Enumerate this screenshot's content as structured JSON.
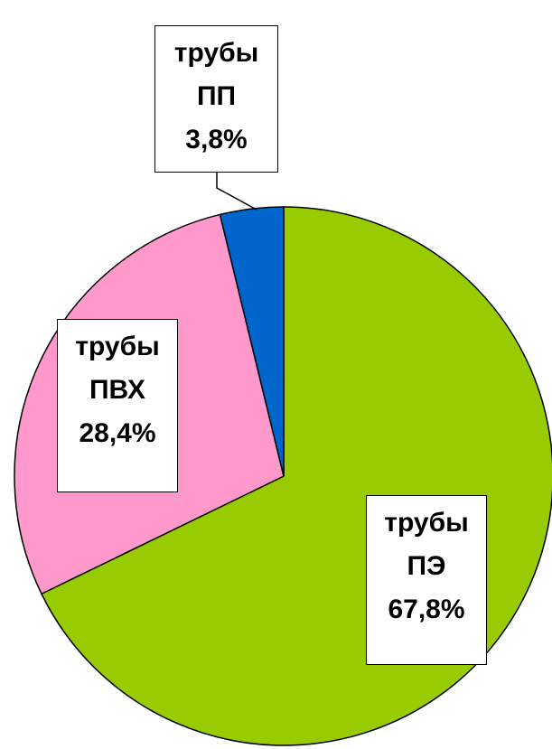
{
  "chart_data": {
    "type": "pie",
    "categories": [
      "трубы ПЭ",
      "трубы ПВХ",
      "трубы ПП"
    ],
    "values": [
      67.8,
      28.4,
      3.8
    ],
    "value_labels": [
      "67,8%",
      "28,4%",
      "3,8%"
    ],
    "colors": [
      "#99cc00",
      "#ff99cc",
      "#0066cc"
    ]
  }
}
